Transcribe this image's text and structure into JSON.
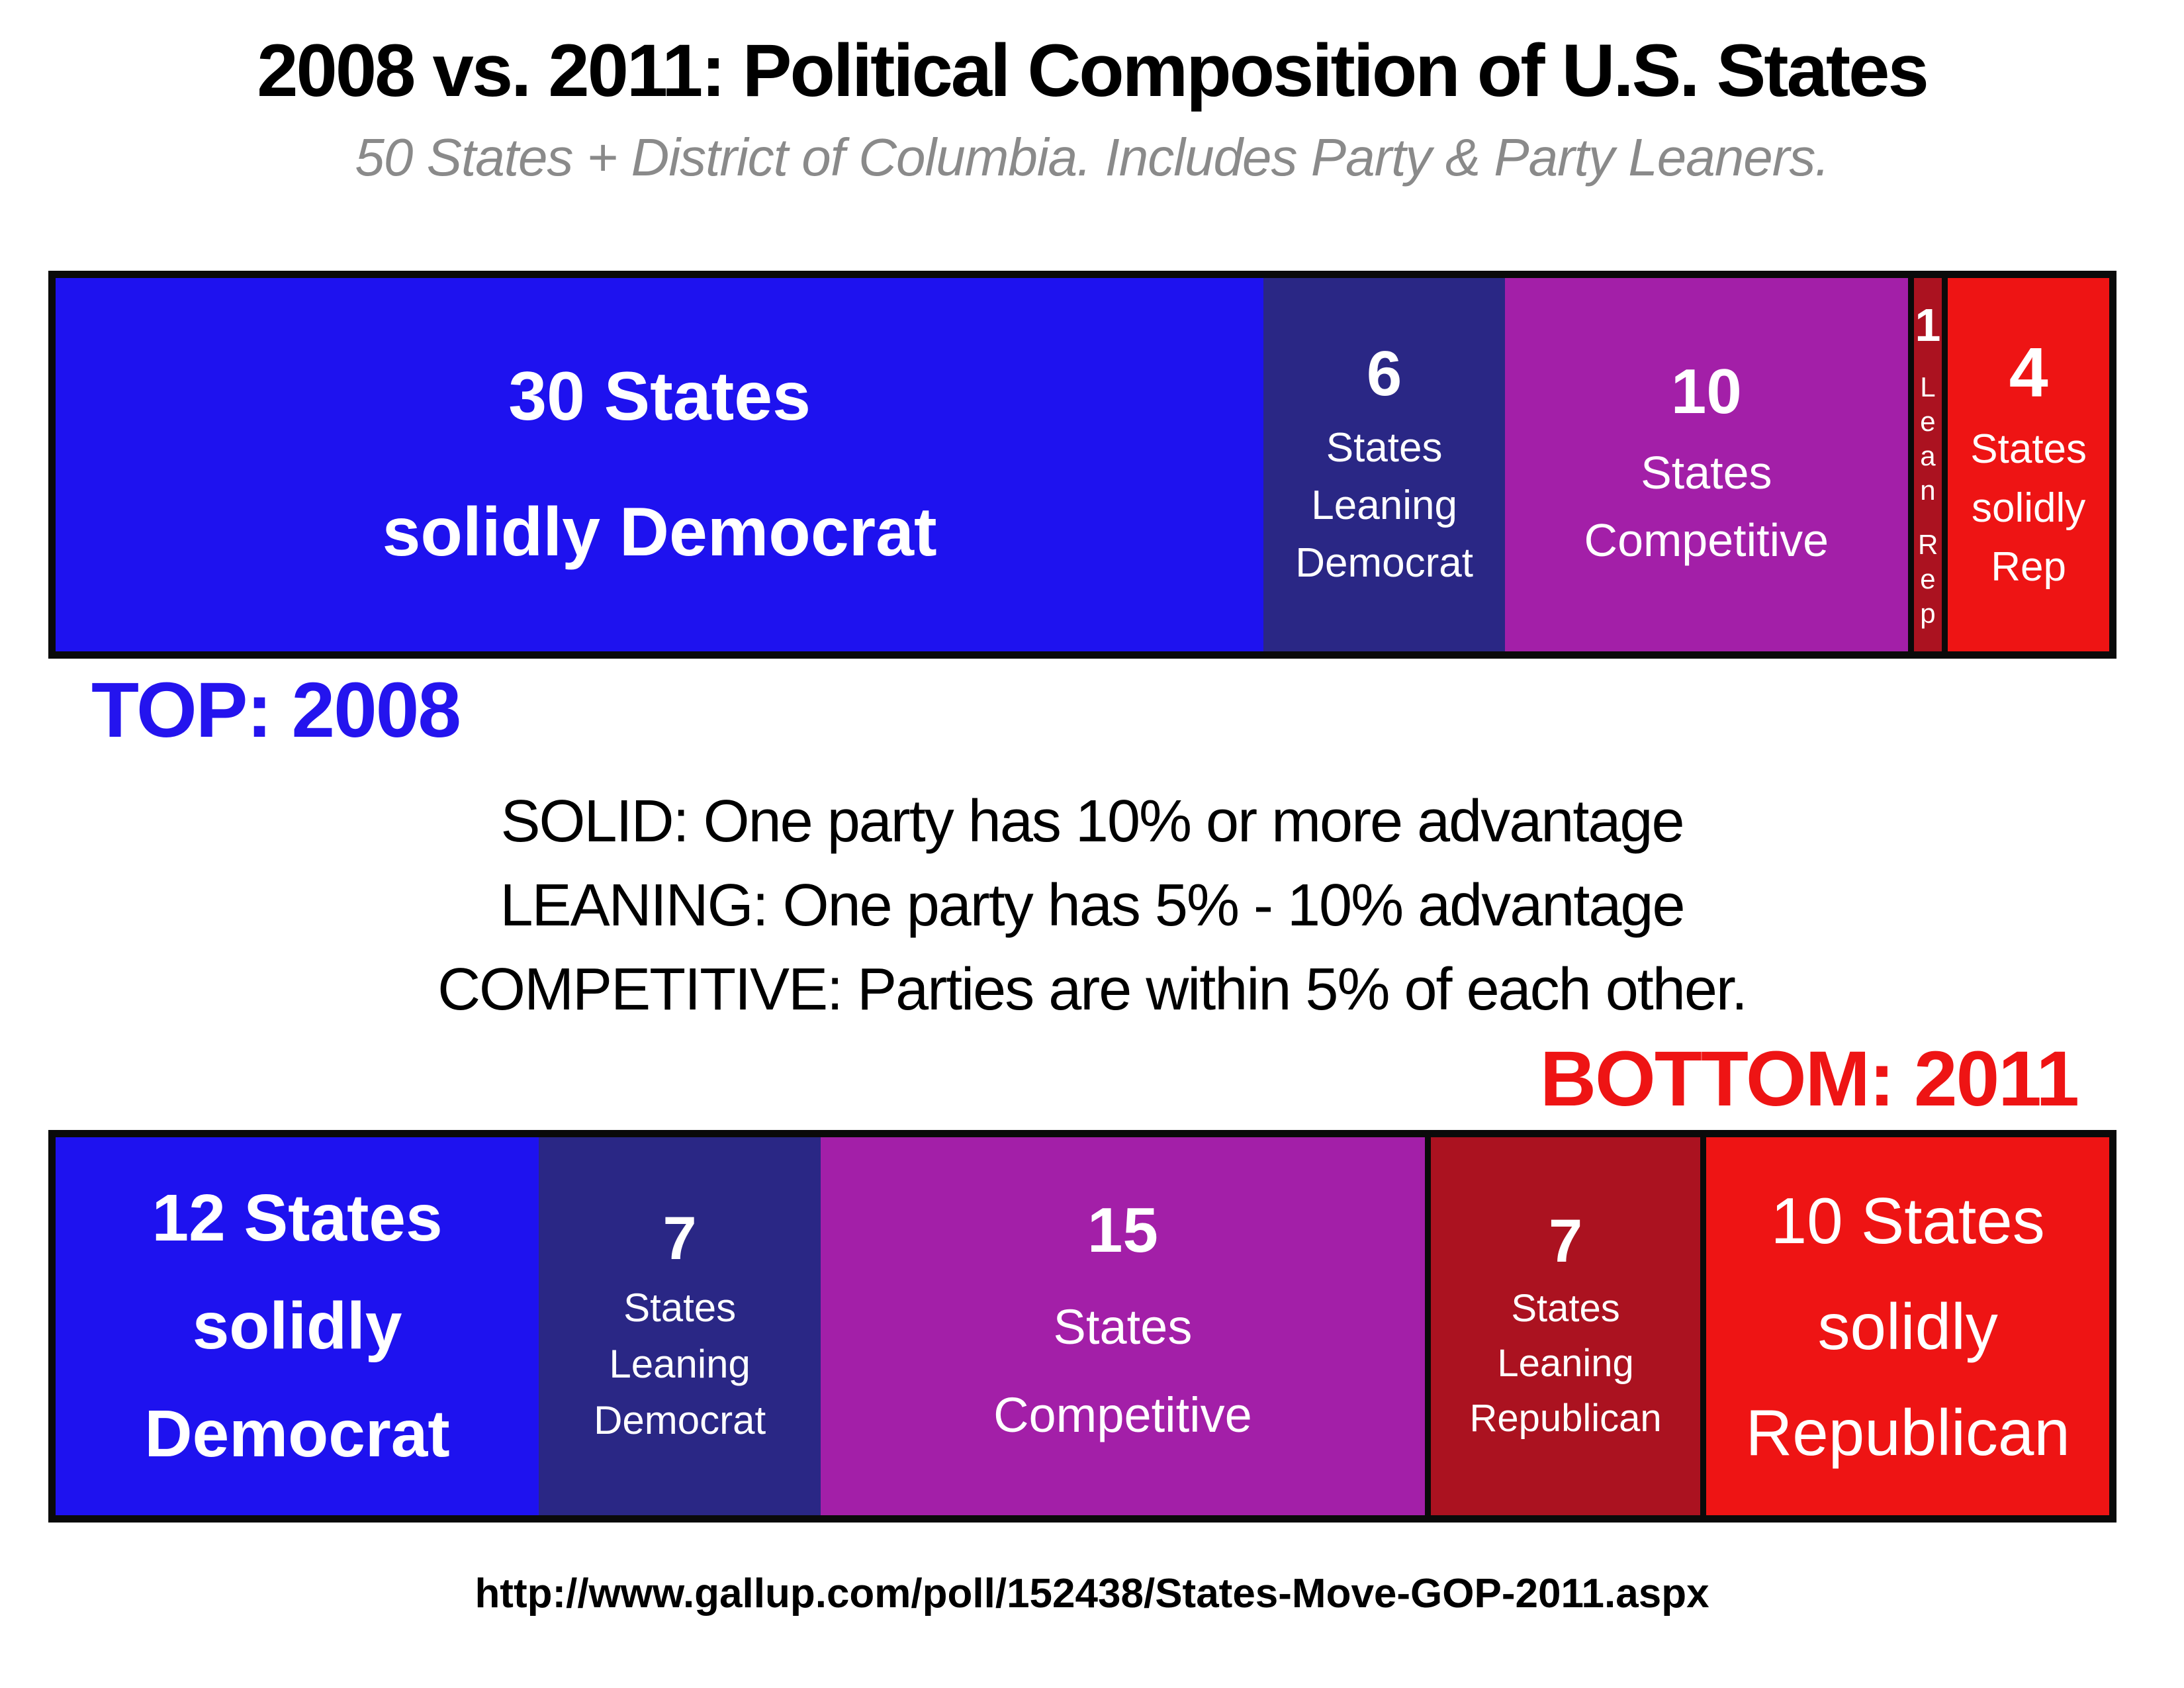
{
  "page": {
    "title": "2008 vs. 2011: Political Composition of U.S. States",
    "subtitle": "50 States + District of Columbia. Includes Party & Party Leaners.",
    "source_url": "http://www.gallup.com/poll/152438/States-Move-GOP-2011.aspx"
  },
  "colors": {
    "solid_democrat": "#1e12ef",
    "leaning_democrat": "#2a2785",
    "competitive": "#a31fa8",
    "leaning_republican": "#ab1220",
    "solid_republican": "#ee1414",
    "top_year_label": "#2414ee",
    "bottom_year_label": "#ee1414",
    "subtitle_gray": "#8a8a8a",
    "border_black": "#0a0a0a"
  },
  "definitions": {
    "solid": "SOLID: One party has 10% or more advantage",
    "leaning": "LEANING: One party has 5% - 10% advantage",
    "competitive": "COMPETITIVE: Parties are within 5% of each other."
  },
  "bars": {
    "top": {
      "year_label": "TOP: 2008",
      "segments": [
        {
          "category": "solid-democrat",
          "count": 30,
          "color": "#1e12ef",
          "lines": [
            "30 States",
            "solidly Democrat"
          ]
        },
        {
          "category": "leaning-democrat",
          "count": 6,
          "color": "#2a2785",
          "number": "6",
          "lines": [
            "States",
            "Leaning",
            "Democrat"
          ]
        },
        {
          "category": "competitive",
          "count": 10,
          "color": "#a31fa8",
          "number": "10",
          "lines": [
            "States",
            "Competitive"
          ]
        },
        {
          "category": "leaning-republican",
          "count": 1,
          "color": "#ab1220",
          "number": "1",
          "vertical_words": [
            "Lean",
            "Rep"
          ]
        },
        {
          "category": "solid-republican",
          "count": 4,
          "color": "#ee1414",
          "number": "4",
          "lines": [
            "States",
            "solidly",
            "Rep"
          ]
        }
      ]
    },
    "bottom": {
      "year_label": "BOTTOM: 2011",
      "segments": [
        {
          "category": "solid-democrat",
          "count": 12,
          "color": "#1e12ef",
          "lines": [
            "12 States",
            "solidly",
            "Democrat"
          ]
        },
        {
          "category": "leaning-democrat",
          "count": 7,
          "color": "#2a2785",
          "number": "7",
          "lines": [
            "States",
            "Leaning",
            "Democrat"
          ]
        },
        {
          "category": "competitive",
          "count": 15,
          "color": "#a31fa8",
          "number": "15",
          "lines": [
            "States",
            "Competitive"
          ]
        },
        {
          "category": "leaning-republican",
          "count": 7,
          "color": "#ab1220",
          "number": "7",
          "lines": [
            "States",
            "Leaning",
            "Republican"
          ]
        },
        {
          "category": "solid-republican",
          "count": 10,
          "color": "#ee1414",
          "lines": [
            "10 States",
            "solidly",
            "Republican"
          ]
        }
      ]
    }
  },
  "chart_data": {
    "type": "bar",
    "subtype": "horizontal-stacked-composition",
    "title": "2008 vs. 2011: Political Composition of U.S. States",
    "subtitle": "50 States + District of Columbia. Includes Party & Party Leaners.",
    "categories": [
      "Solid Democrat",
      "Leaning Democrat",
      "Competitive",
      "Leaning Republican",
      "Solid Republican"
    ],
    "series": [
      {
        "name": "2008",
        "values": [
          30,
          6,
          10,
          1,
          4
        ]
      },
      {
        "name": "2011",
        "values": [
          12,
          7,
          15,
          7,
          10
        ]
      }
    ],
    "total_units": 51,
    "unit": "states",
    "segment_colors": [
      "#1e12ef",
      "#2a2785",
      "#a31fa8",
      "#ab1220",
      "#ee1414"
    ],
    "legend_position": "none",
    "grid": false,
    "annotations": [
      "TOP: 2008",
      "BOTTOM: 2011",
      "SOLID: One party has 10% or more advantage",
      "LEANING: One party has 5% - 10% advantage",
      "COMPETITIVE: Parties are within 5% of each other.",
      "http://www.gallup.com/poll/152438/States-Move-GOP-2011.aspx"
    ]
  }
}
